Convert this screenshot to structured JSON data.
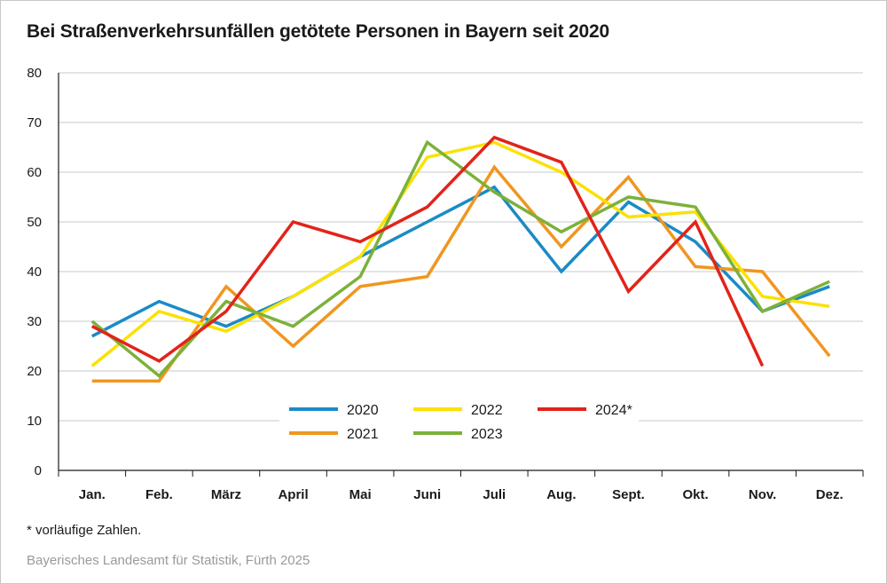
{
  "title": "Bei Straßenverkehrsunfällen getötete Personen in Bayern seit 2020",
  "footnote": "* vorläufige Zahlen.",
  "source": "Bayerisches Landesamt für Statistik, Fürth 2025",
  "chart_data": {
    "type": "line",
    "title": "Bei Straßenverkehrsunfällen getötete Personen in Bayern seit 2020",
    "xlabel": "",
    "ylabel": "",
    "ylim": [
      0,
      80
    ],
    "yticks": [
      0,
      10,
      20,
      30,
      40,
      50,
      60,
      70,
      80
    ],
    "grid": "horizontal",
    "legend_position": "inside-bottom-center",
    "categories": [
      "Jan.",
      "Feb.",
      "März",
      "April",
      "Mai",
      "Juni",
      "Juli",
      "Aug.",
      "Sept.",
      "Okt.",
      "Nov.",
      "Dez."
    ],
    "series": [
      {
        "name": "2020",
        "color": "#1a8bc6",
        "values": [
          27,
          34,
          29,
          35,
          43,
          50,
          57,
          40,
          54,
          46,
          32,
          37
        ]
      },
      {
        "name": "2021",
        "color": "#f0961f",
        "values": [
          18,
          18,
          37,
          25,
          37,
          39,
          61,
          45,
          59,
          41,
          40,
          23
        ]
      },
      {
        "name": "2022",
        "color": "#fbe100",
        "values": [
          21,
          32,
          28,
          35,
          43,
          63,
          66,
          60,
          51,
          52,
          35,
          33
        ]
      },
      {
        "name": "2023",
        "color": "#7cb13a",
        "values": [
          30,
          19,
          34,
          29,
          39,
          66,
          56,
          48,
          55,
          53,
          32,
          38
        ]
      },
      {
        "name": "2024*",
        "color": "#e2231a",
        "values": [
          29,
          22,
          32,
          50,
          46,
          53,
          67,
          62,
          36,
          50,
          21,
          null
        ]
      }
    ],
    "legend_order": [
      "2020",
      "2022",
      "2024*",
      "2021",
      "2023"
    ]
  }
}
